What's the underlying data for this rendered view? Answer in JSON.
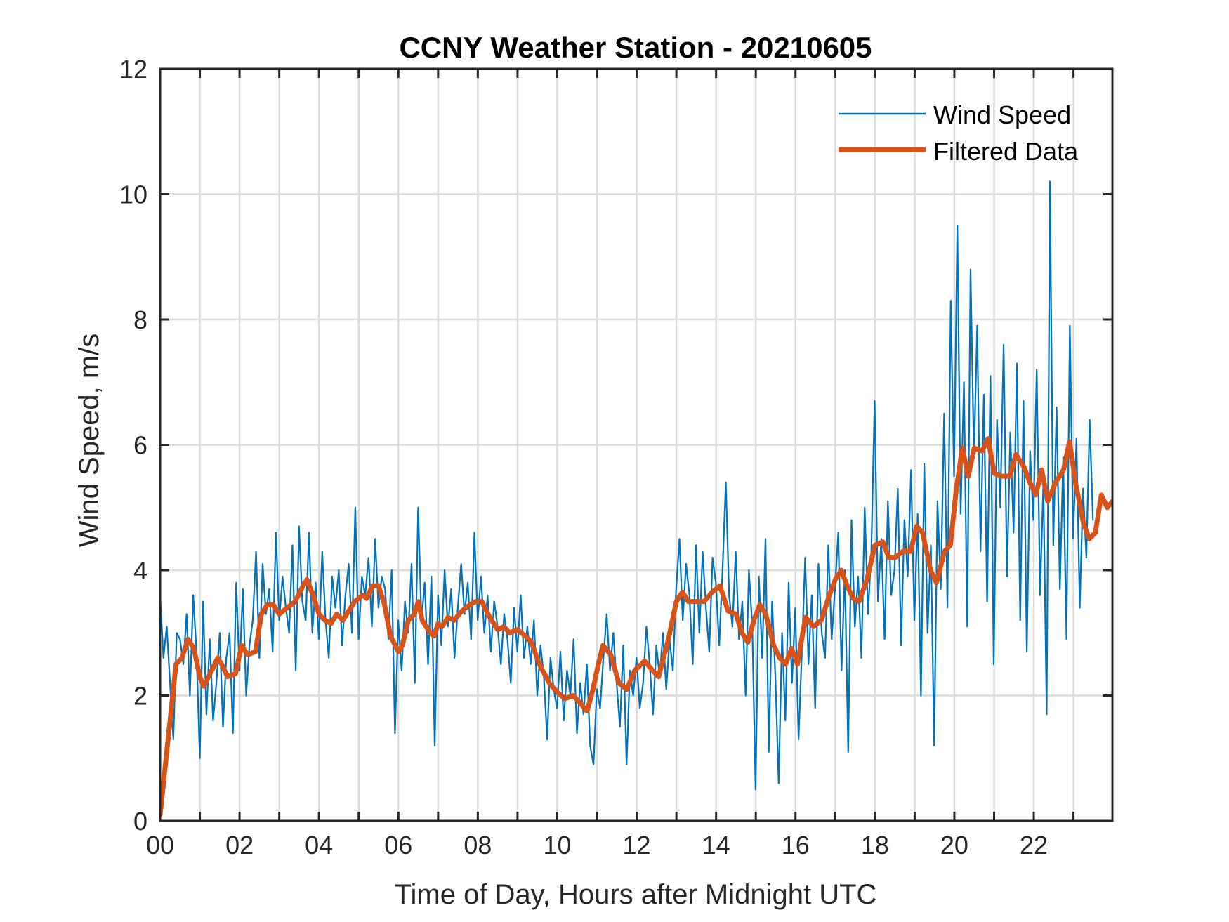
{
  "chart_data": {
    "type": "line",
    "title": "CCNY Weather Station - 20210605",
    "xlabel": "Time of Day, Hours after Midnight UTC",
    "ylabel": "Wind Speed, m/s",
    "xlim": [
      0,
      23.98
    ],
    "ylim": [
      0,
      12
    ],
    "grid": true,
    "x_ticks": [
      0,
      2,
      4,
      6,
      8,
      10,
      12,
      14,
      16,
      18,
      20,
      22
    ],
    "x_tick_labels": [
      "00",
      "02",
      "04",
      "06",
      "08",
      "10",
      "12",
      "14",
      "16",
      "18",
      "20",
      "22"
    ],
    "x_minor_ticks_every_hours": 1,
    "y_ticks": [
      0,
      2,
      4,
      6,
      8,
      10,
      12
    ],
    "y_tick_labels": [
      "0",
      "2",
      "4",
      "6",
      "8",
      "10",
      "12"
    ],
    "legend": {
      "placement": "top-right",
      "entries": [
        "Wind Speed",
        "Filtered Data"
      ]
    },
    "series": [
      {
        "name": "Wind Speed",
        "color": "#0072BD",
        "x_start": 0,
        "x_step_hours": 0.0833,
        "values": [
          3.6,
          2.6,
          3.1,
          2.2,
          1.3,
          3.0,
          2.9,
          2.5,
          3.3,
          2.0,
          3.6,
          2.7,
          1.0,
          3.5,
          1.7,
          2.9,
          1.6,
          2.2,
          3.0,
          1.5,
          2.6,
          3.0,
          1.4,
          3.8,
          2.4,
          3.7,
          2.0,
          2.8,
          3.2,
          4.3,
          2.6,
          4.1,
          3.3,
          3.7,
          2.7,
          4.6,
          3.2,
          3.9,
          3.4,
          3.0,
          4.4,
          2.4,
          4.7,
          3.5,
          3.2,
          4.6,
          3.0,
          3.8,
          2.9,
          4.3,
          3.2,
          2.6,
          3.9,
          3.4,
          4.0,
          2.8,
          3.6,
          4.1,
          3.0,
          5.0,
          2.9,
          3.9,
          3.6,
          4.2,
          3.1,
          4.5,
          3.4,
          3.9,
          3.7,
          2.9,
          4.0,
          1.4,
          3.2,
          2.4,
          3.5,
          3.0,
          4.1,
          2.2,
          5.0,
          3.2,
          3.8,
          2.5,
          3.9,
          1.2,
          3.6,
          2.8,
          4.0,
          3.1,
          3.7,
          2.6,
          3.4,
          4.1,
          3.3,
          3.8,
          2.9,
          4.6,
          3.2,
          3.9,
          3.0,
          3.6,
          2.7,
          3.5,
          3.1,
          2.5,
          3.3,
          2.9,
          2.2,
          3.4,
          2.7,
          3.6,
          2.6,
          3.1,
          2.5,
          3.2,
          2.0,
          2.8,
          2.3,
          1.3,
          2.6,
          2.1,
          1.8,
          2.7,
          1.6,
          2.4,
          2.0,
          2.9,
          1.4,
          2.2,
          1.7,
          2.5,
          1.2,
          0.9,
          2.1,
          1.8,
          2.6,
          3.3,
          2.4,
          3.0,
          2.2,
          1.5,
          2.8,
          0.9,
          2.4,
          2.0,
          2.6,
          1.8,
          2.2,
          3.1,
          2.5,
          1.7,
          2.8,
          2.3,
          3.0,
          2.1,
          2.9,
          2.4,
          3.7,
          4.5,
          3.2,
          4.1,
          3.6,
          2.5,
          4.4,
          3.0,
          4.3,
          3.4,
          2.7,
          4.2,
          3.8,
          2.8,
          4.0,
          5.4,
          3.6,
          3.1,
          4.3,
          2.9,
          3.5,
          2.0,
          4.0,
          3.1,
          0.5,
          3.9,
          2.6,
          4.5,
          1.1,
          3.5,
          2.3,
          0.6,
          3.0,
          1.6,
          3.8,
          2.2,
          3.4,
          1.3,
          2.7,
          4.2,
          2.5,
          3.6,
          1.8,
          4.1,
          3.0,
          2.6,
          4.4,
          2.9,
          3.7,
          4.6,
          2.4,
          4.0,
          1.1,
          4.8,
          3.1,
          3.9,
          2.6,
          5.0,
          3.3,
          4.3,
          6.7,
          3.5,
          4.5,
          2.9,
          5.1,
          3.6,
          4.0,
          5.3,
          2.8,
          4.8,
          3.9,
          5.6,
          3.2,
          4.9,
          2.0,
          5.7,
          3.0,
          4.4,
          1.2,
          5.1,
          3.7,
          6.5,
          3.4,
          8.3,
          5.5,
          9.5,
          4.9,
          7.0,
          3.1,
          8.8,
          5.8,
          7.9,
          4.3,
          6.8,
          3.5,
          7.1,
          2.5,
          6.4,
          5.0,
          7.6,
          3.9,
          6.2,
          4.6,
          7.3,
          3.2,
          6.7,
          2.7,
          5.9,
          4.8,
          7.2,
          3.6,
          5.4,
          1.7,
          10.2,
          4.4,
          6.6,
          3.7,
          5.8,
          2.9,
          7.9,
          4.5,
          6.1,
          3.4,
          5.3,
          4.2,
          6.4,
          4.8
        ]
      },
      {
        "name": "Filtered Data",
        "color": "#D95319",
        "x": [
          0.0,
          0.2,
          0.4,
          0.55,
          0.7,
          0.85,
          1.0,
          1.1,
          1.3,
          1.45,
          1.55,
          1.7,
          1.9,
          2.05,
          2.2,
          2.4,
          2.55,
          2.7,
          2.85,
          3.0,
          3.2,
          3.4,
          3.6,
          3.7,
          3.85,
          4.0,
          4.15,
          4.3,
          4.45,
          4.6,
          4.75,
          4.9,
          5.1,
          5.2,
          5.35,
          5.5,
          5.65,
          5.8,
          6.0,
          6.1,
          6.25,
          6.4,
          6.5,
          6.6,
          6.8,
          6.9,
          7.0,
          7.1,
          7.25,
          7.4,
          7.6,
          7.8,
          7.95,
          8.1,
          8.3,
          8.5,
          8.65,
          8.8,
          9.0,
          9.2,
          9.35,
          9.55,
          9.8,
          10.0,
          10.2,
          10.4,
          10.55,
          10.75,
          10.9,
          11.0,
          11.15,
          11.35,
          11.55,
          11.75,
          11.95,
          12.2,
          12.4,
          12.55,
          12.8,
          13.0,
          13.15,
          13.3,
          13.5,
          13.7,
          13.9,
          14.1,
          14.3,
          14.5,
          14.65,
          14.8,
          14.95,
          15.1,
          15.25,
          15.45,
          15.6,
          15.75,
          15.9,
          16.05,
          16.25,
          16.45,
          16.65,
          16.85,
          17.0,
          17.15,
          17.3,
          17.45,
          17.6,
          17.8,
          18.0,
          18.2,
          18.35,
          18.5,
          18.7,
          18.9,
          19.05,
          19.2,
          19.4,
          19.55,
          19.75,
          19.9,
          20.05,
          20.2,
          20.35,
          20.5,
          20.7,
          20.85,
          21.0,
          21.2,
          21.4,
          21.55,
          21.75,
          21.9,
          22.05,
          22.2,
          22.35,
          22.55,
          22.75,
          22.9,
          23.05,
          23.25,
          23.4,
          23.55,
          23.7,
          23.85,
          23.98
        ],
        "values": [
          0.1,
          1.3,
          2.5,
          2.6,
          2.9,
          2.75,
          2.3,
          2.15,
          2.4,
          2.6,
          2.5,
          2.3,
          2.35,
          2.8,
          2.65,
          2.7,
          3.3,
          3.45,
          3.45,
          3.3,
          3.4,
          3.5,
          3.75,
          3.85,
          3.6,
          3.3,
          3.2,
          3.15,
          3.3,
          3.2,
          3.35,
          3.5,
          3.6,
          3.55,
          3.75,
          3.75,
          3.45,
          2.95,
          2.7,
          2.8,
          3.2,
          3.3,
          3.5,
          3.2,
          3.0,
          2.95,
          3.15,
          3.1,
          3.25,
          3.2,
          3.35,
          3.45,
          3.5,
          3.5,
          3.25,
          3.05,
          3.1,
          3.0,
          3.05,
          2.95,
          2.85,
          2.5,
          2.2,
          2.05,
          1.95,
          2.0,
          1.9,
          1.75,
          2.1,
          2.4,
          2.8,
          2.65,
          2.2,
          2.1,
          2.4,
          2.55,
          2.4,
          2.3,
          2.9,
          3.5,
          3.65,
          3.5,
          3.5,
          3.5,
          3.65,
          3.75,
          3.35,
          3.3,
          3.0,
          2.85,
          3.2,
          3.45,
          3.3,
          2.8,
          2.6,
          2.5,
          2.75,
          2.5,
          3.25,
          3.1,
          3.2,
          3.6,
          3.85,
          4.0,
          3.75,
          3.55,
          3.5,
          3.85,
          4.4,
          4.45,
          4.2,
          4.2,
          4.3,
          4.3,
          4.7,
          4.6,
          4.0,
          3.8,
          4.3,
          4.4,
          5.3,
          5.95,
          5.5,
          5.95,
          5.9,
          6.1,
          5.55,
          5.5,
          5.5,
          5.85,
          5.65,
          5.4,
          5.2,
          5.6,
          5.1,
          5.4,
          5.6,
          6.05,
          5.4,
          4.75,
          4.5,
          4.6,
          5.2,
          5.0,
          5.1
        ]
      }
    ]
  }
}
